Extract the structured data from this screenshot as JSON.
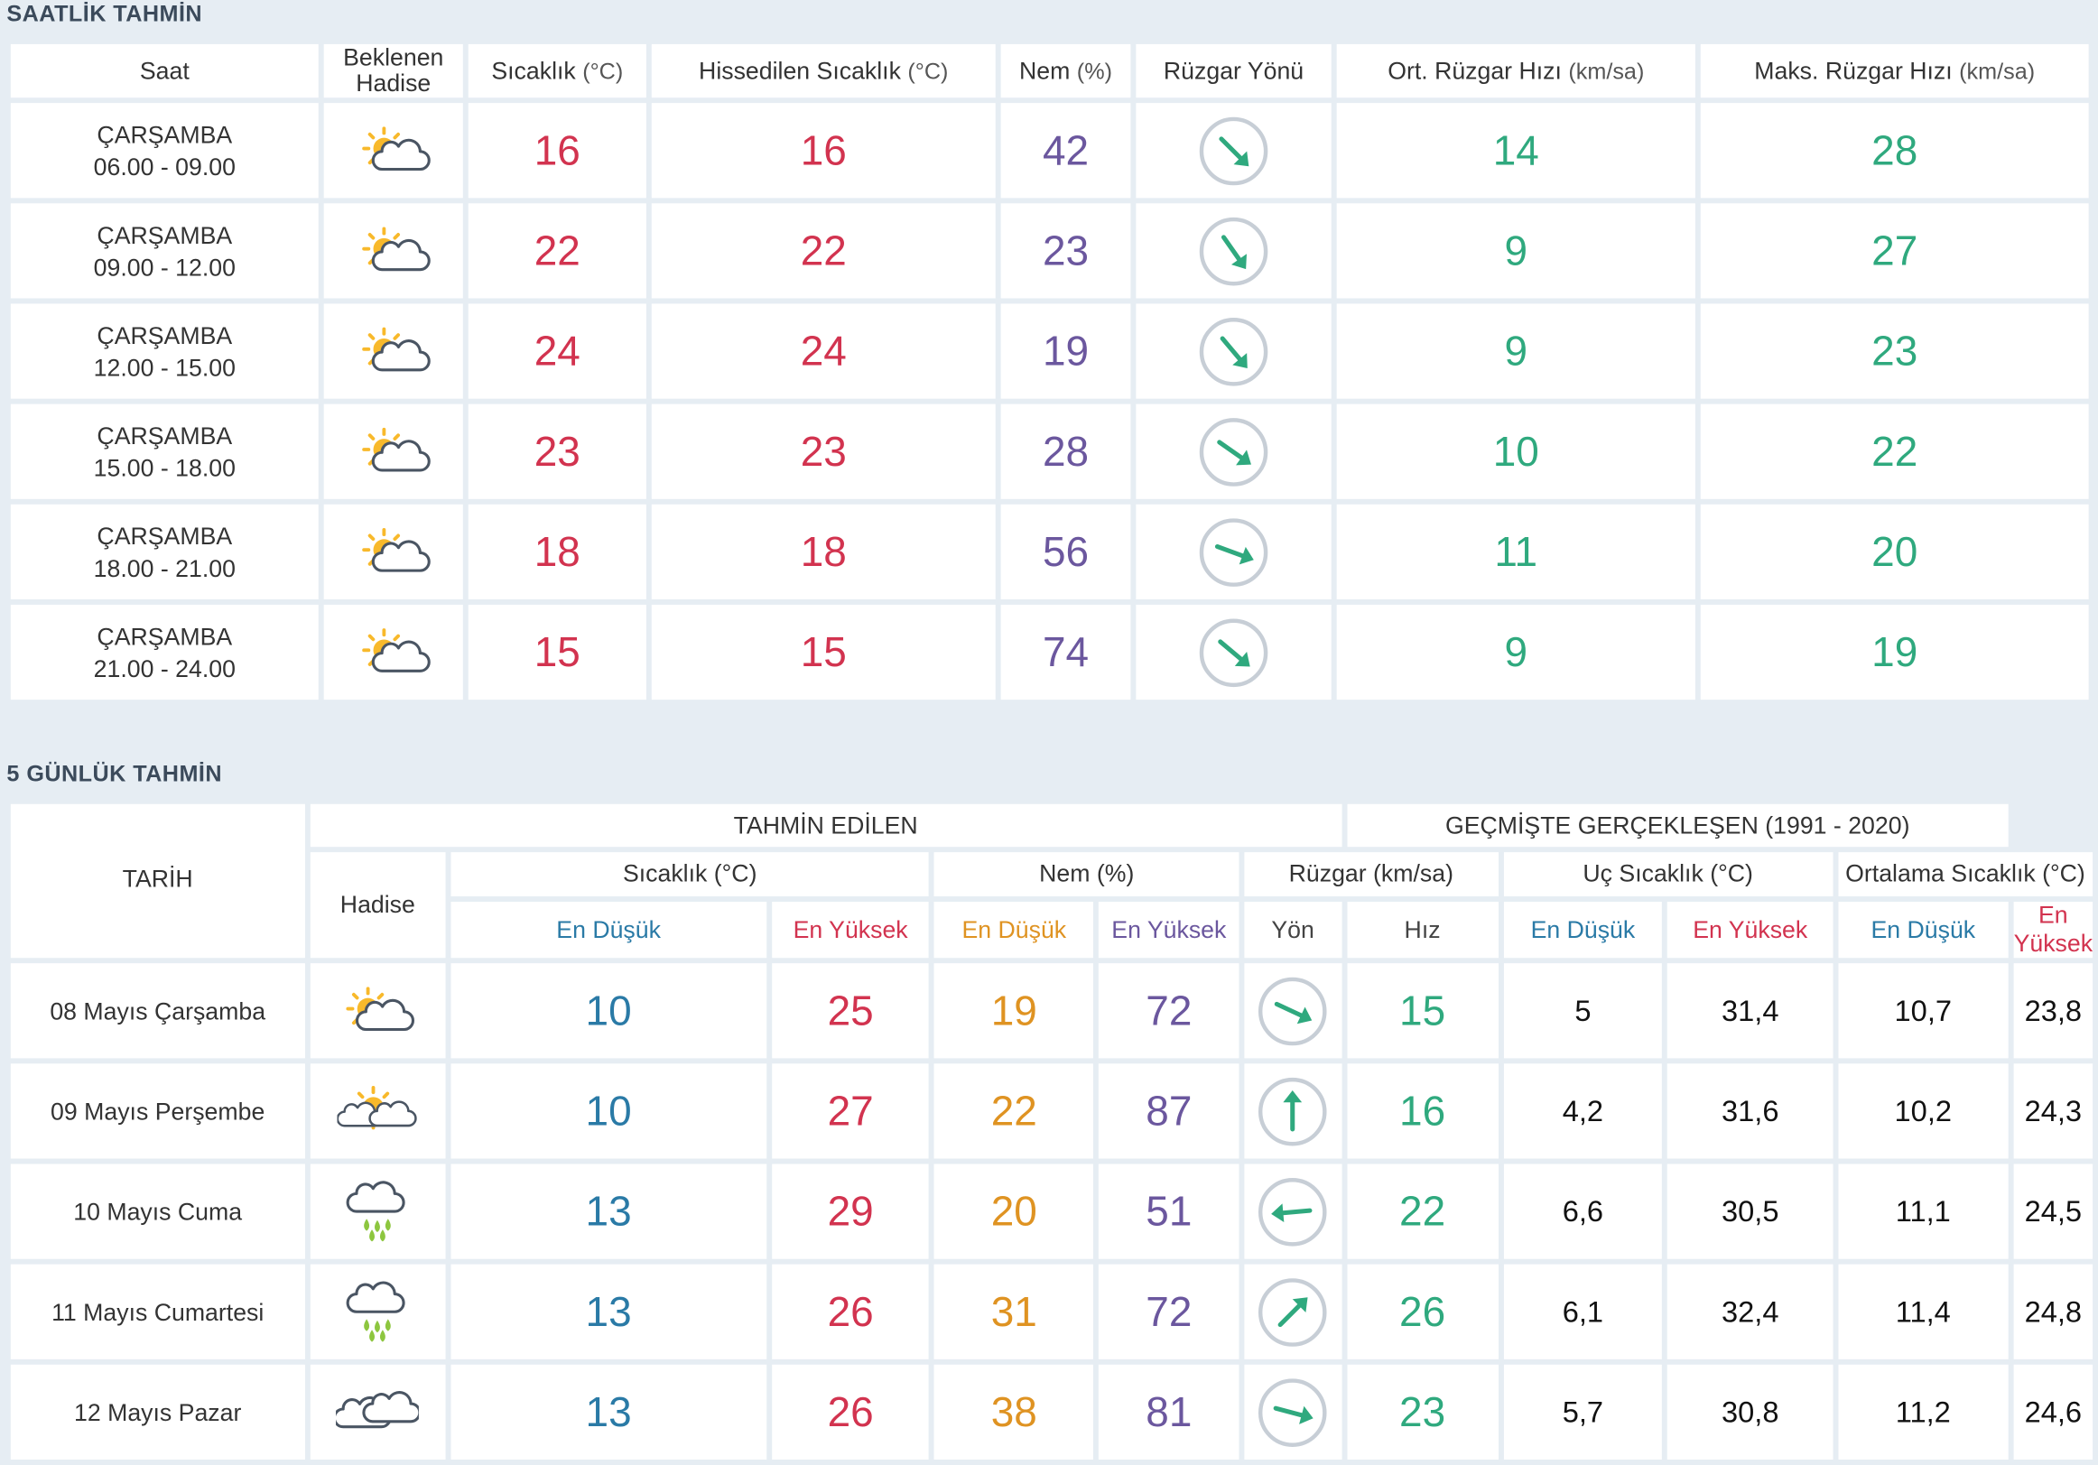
{
  "hourly": {
    "title": "SAATLİK TAHMİN",
    "headers": {
      "saat": "Saat",
      "hadise": [
        "Beklenen",
        "Hadise"
      ],
      "sicaklik": "Sıcaklık",
      "sicaklik_unit": "(°C)",
      "hissedilen": "Hissedilen Sıcaklık",
      "hissedilen_unit": "(°C)",
      "nem": "Nem",
      "nem_unit": "(%)",
      "ruzgar_yonu": "Rüzgar Yönü",
      "ort_ruzgar": "Ort. Rüzgar Hızı",
      "ort_ruzgar_unit": "(km/sa)",
      "maks_ruzgar": "Maks. Rüzgar Hızı",
      "maks_ruzgar_unit": "(km/sa)"
    },
    "rows": [
      {
        "day": "ÇARŞAMBA",
        "time": "06.00 - 09.00",
        "icon": "partly-cloudy-icon",
        "temp": "16",
        "feels": "16",
        "humidity": "42",
        "wind_dir_deg": 135,
        "avg_wind": "14",
        "max_wind": "28"
      },
      {
        "day": "ÇARŞAMBA",
        "time": "09.00 - 12.00",
        "icon": "partly-cloudy-icon",
        "temp": "22",
        "feels": "22",
        "humidity": "23",
        "wind_dir_deg": 145,
        "avg_wind": "9",
        "max_wind": "27"
      },
      {
        "day": "ÇARŞAMBA",
        "time": "12.00 - 15.00",
        "icon": "partly-cloudy-icon",
        "temp": "24",
        "feels": "24",
        "humidity": "19",
        "wind_dir_deg": 140,
        "avg_wind": "9",
        "max_wind": "23"
      },
      {
        "day": "ÇARŞAMBA",
        "time": "15.00 - 18.00",
        "icon": "partly-cloudy-icon",
        "temp": "23",
        "feels": "23",
        "humidity": "28",
        "wind_dir_deg": 125,
        "avg_wind": "10",
        "max_wind": "22"
      },
      {
        "day": "ÇARŞAMBA",
        "time": "18.00 - 21.00",
        "icon": "partly-cloudy-icon",
        "temp": "18",
        "feels": "18",
        "humidity": "56",
        "wind_dir_deg": 110,
        "avg_wind": "11",
        "max_wind": "20"
      },
      {
        "day": "ÇARŞAMBA",
        "time": "21.00 - 24.00",
        "icon": "partly-cloudy-icon",
        "temp": "15",
        "feels": "15",
        "humidity": "74",
        "wind_dir_deg": 130,
        "avg_wind": "9",
        "max_wind": "19"
      }
    ]
  },
  "daily": {
    "title": "5 GÜNLÜK TAHMİN",
    "headers": {
      "tarih": "TARİH",
      "tahmin_edilen": "TAHMİN EDİLEN",
      "gecmiste": "GEÇMİŞTE GERÇEKLEŞEN (1991 - 2020)",
      "hadise": "Hadise",
      "sicaklik": "Sıcaklık (°C)",
      "nem": "Nem (%)",
      "ruzgar": "Rüzgar (km/sa)",
      "uc_sicaklik": "Uç Sıcaklık (°C)",
      "ortalama_sicaklik": "Ortalama Sıcaklık (°C)",
      "en_dusuk": "En Düşük",
      "en_yuksek": "En Yüksek",
      "yon": "Yön",
      "hiz": "Hız"
    },
    "rows": [
      {
        "date": "08 Mayıs Çarşamba",
        "icon": "partly-cloudy-icon",
        "t_min": "10",
        "t_max": "25",
        "h_min": "19",
        "h_max": "72",
        "wind_dir_deg": 115,
        "wind_speed": "15",
        "ext_min": "5",
        "ext_max": "31,4",
        "avg_min": "10,7",
        "avg_max": "23,8"
      },
      {
        "date": "09 Mayıs Perşembe",
        "icon": "sun-clouds-icon",
        "t_min": "10",
        "t_max": "27",
        "h_min": "22",
        "h_max": "87",
        "wind_dir_deg": 0,
        "wind_speed": "16",
        "ext_min": "4,2",
        "ext_max": "31,6",
        "avg_min": "10,2",
        "avg_max": "24,3"
      },
      {
        "date": "10 Mayıs Cuma",
        "icon": "rain-icon",
        "t_min": "13",
        "t_max": "29",
        "h_min": "20",
        "h_max": "51",
        "wind_dir_deg": 265,
        "wind_speed": "22",
        "ext_min": "6,6",
        "ext_max": "30,5",
        "avg_min": "11,1",
        "avg_max": "24,5"
      },
      {
        "date": "11 Mayıs Cumartesi",
        "icon": "rain-icon",
        "t_min": "13",
        "t_max": "26",
        "h_min": "31",
        "h_max": "72",
        "wind_dir_deg": 45,
        "wind_speed": "26",
        "ext_min": "6,1",
        "ext_max": "32,4",
        "avg_min": "11,4",
        "avg_max": "24,8"
      },
      {
        "date": "12 Mayıs Pazar",
        "icon": "cloudy-icon",
        "t_min": "13",
        "t_max": "26",
        "h_min": "38",
        "h_max": "81",
        "wind_dir_deg": 105,
        "wind_speed": "23",
        "ext_min": "5,7",
        "ext_max": "30,8",
        "avg_min": "11,2",
        "avg_max": "24,6"
      }
    ]
  },
  "colors": {
    "temperature": "#d2334f",
    "humidity": "#6b579e",
    "wind": "#2fa97e",
    "min": "#2a7aa6",
    "humidity_min": "#df9322",
    "background": "#e6edf3"
  }
}
